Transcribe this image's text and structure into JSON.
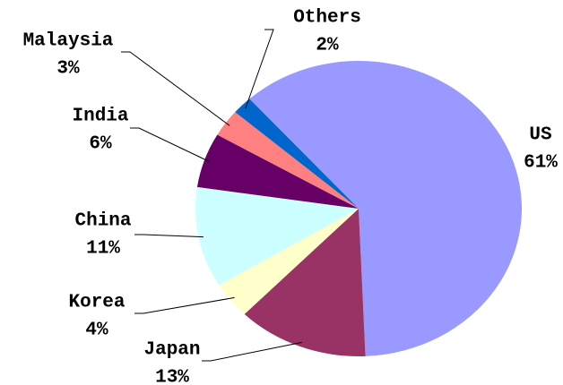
{
  "chart_data": {
    "type": "pie",
    "categories": [
      "US",
      "Japan",
      "Korea",
      "China",
      "India",
      "Malaysia",
      "Others"
    ],
    "values": [
      61,
      13,
      4,
      11,
      6,
      3,
      2
    ],
    "value_labels": [
      "61%",
      "13%",
      "4%",
      "11%",
      "6%",
      "3%",
      "2%"
    ],
    "colors": [
      "#9999ff",
      "#993366",
      "#ffffcc",
      "#ccffff",
      "#660066",
      "#ff8080",
      "#0066cc"
    ]
  }
}
